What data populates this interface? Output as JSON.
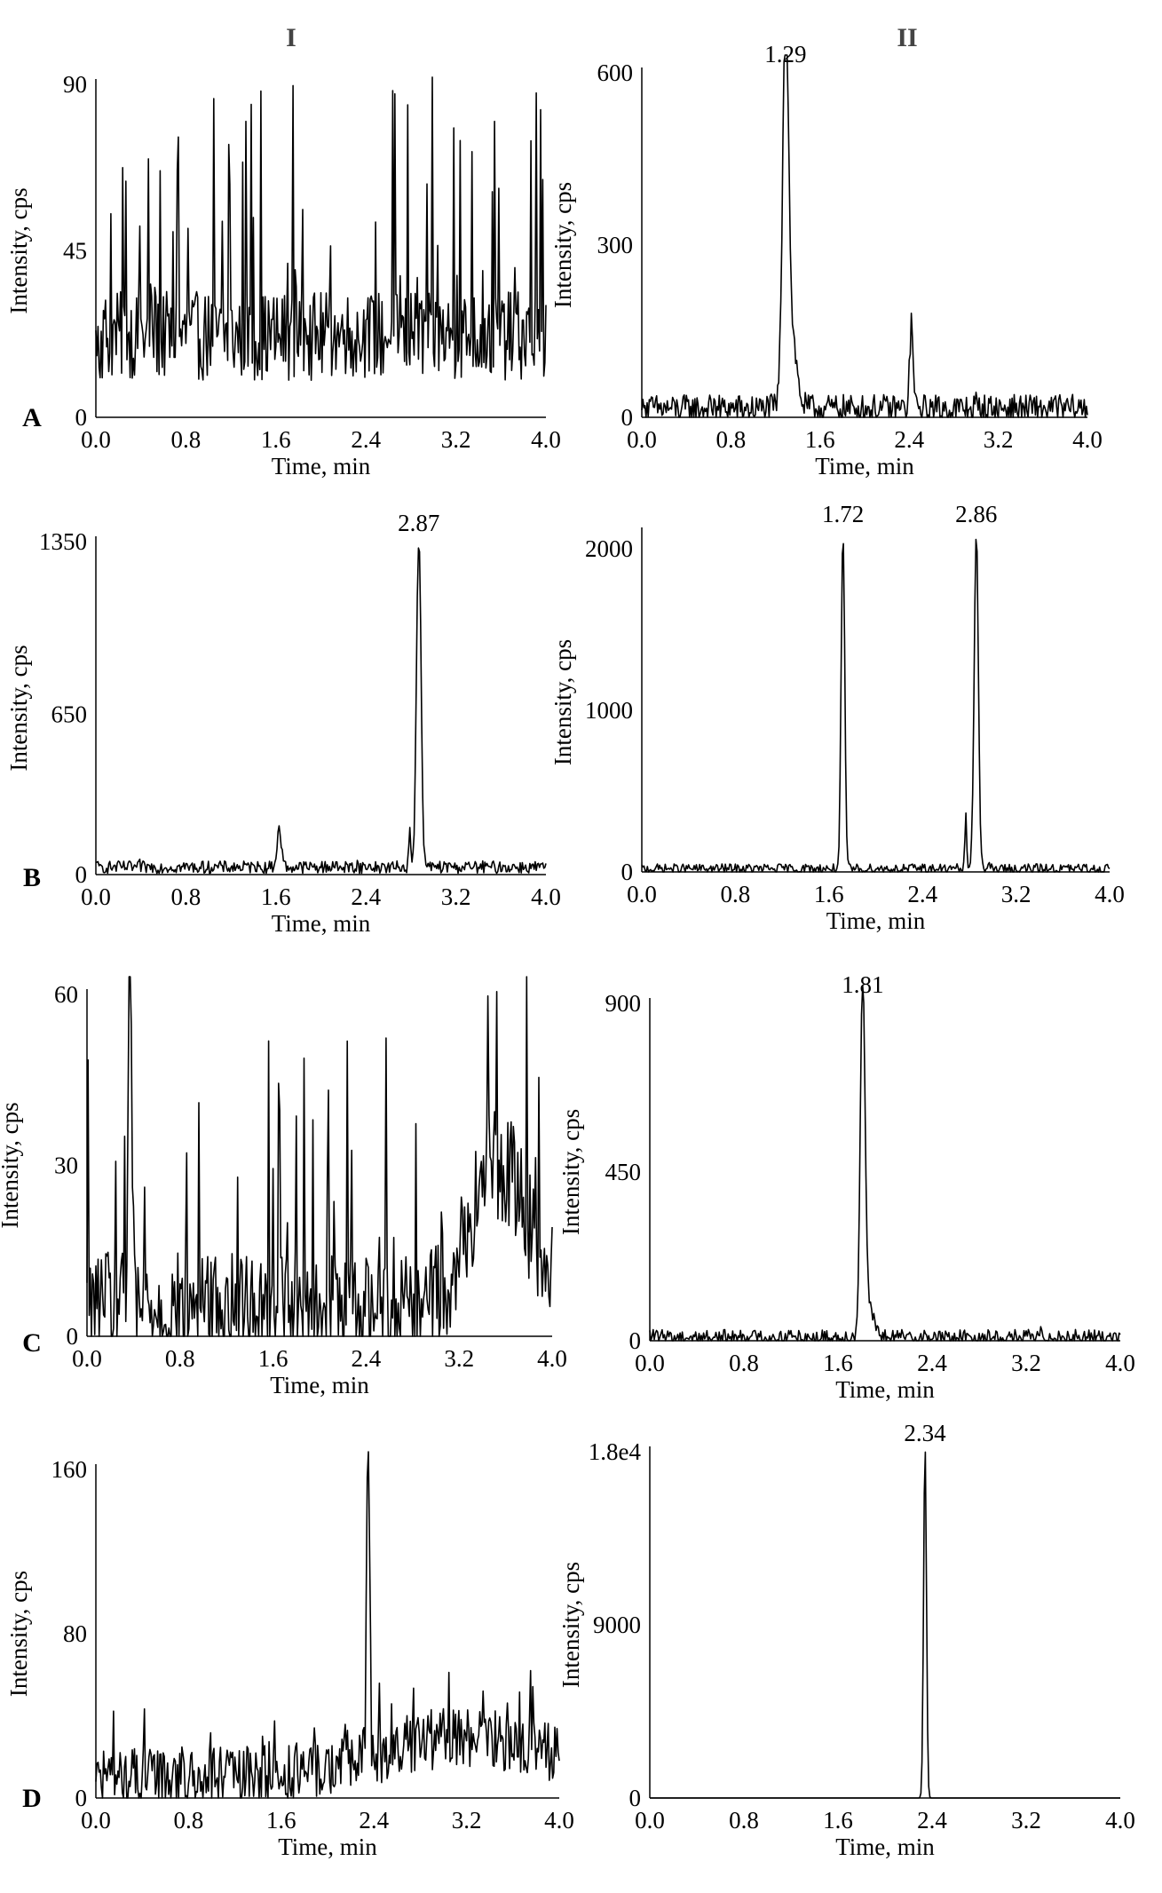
{
  "figure": {
    "column_headers": [
      "I",
      "II"
    ],
    "row_labels": [
      "A",
      "B",
      "C",
      "D"
    ]
  },
  "chart_data": [
    {
      "type": "line",
      "panel": "A",
      "column": "I",
      "xlabel": "Time, min",
      "ylabel": "Intensity, cps",
      "xlim": [
        0.0,
        4.0
      ],
      "ylim": [
        0,
        90
      ],
      "xticks": [
        "0.0",
        "0.8",
        "1.6",
        "2.4",
        "3.2",
        "4.0"
      ],
      "yticks": [
        {
          "value": 0,
          "label": "0"
        },
        {
          "value": 45,
          "label": "45"
        },
        {
          "value": 90,
          "label": "90"
        }
      ],
      "peak_labels": [],
      "baseline": 22,
      "noise": 12,
      "spikes": 60,
      "spike_max": 92,
      "peaks": []
    },
    {
      "type": "line",
      "panel": "A",
      "column": "II",
      "xlabel": "Time, min",
      "ylabel": "Intensity, cps",
      "xlim": [
        0.0,
        4.0
      ],
      "ylim": [
        0,
        600
      ],
      "xticks": [
        "0.0",
        "0.8",
        "1.6",
        "2.4",
        "3.2",
        "4.0"
      ],
      "yticks": [
        {
          "value": 0,
          "label": "0"
        },
        {
          "value": 300,
          "label": "300"
        },
        {
          "value": 600,
          "label": "600"
        }
      ],
      "peak_labels": [
        {
          "x": 1.29,
          "label": "1.29"
        }
      ],
      "baseline": 15,
      "noise": 25,
      "spikes": 4,
      "spike_max": 50,
      "peaks": [
        {
          "x": 1.29,
          "y": 630,
          "w": 0.025
        },
        {
          "x": 1.33,
          "y": 150,
          "w": 0.05
        },
        {
          "x": 2.42,
          "y": 150,
          "w": 0.015
        }
      ]
    },
    {
      "type": "line",
      "panel": "B",
      "column": "I",
      "xlabel": "Time, min",
      "ylabel": "Intensity, cps",
      "xlim": [
        0.0,
        4.0
      ],
      "ylim": [
        0,
        1350
      ],
      "xticks": [
        "0.0",
        "0.8",
        "1.6",
        "2.4",
        "3.2",
        "4.0"
      ],
      "yticks": [
        {
          "value": 0,
          "label": "0"
        },
        {
          "value": 650,
          "label": "650"
        },
        {
          "value": 1350,
          "label": "1350"
        }
      ],
      "peak_labels": [
        {
          "x": 2.87,
          "label": "2.87"
        }
      ],
      "baseline": 30,
      "noise": 25,
      "spikes": 6,
      "spike_max": 80,
      "peaks": [
        {
          "x": 2.87,
          "y": 1330,
          "w": 0.02
        },
        {
          "x": 1.63,
          "y": 150,
          "w": 0.02
        },
        {
          "x": 2.79,
          "y": 140,
          "w": 0.01
        }
      ]
    },
    {
      "type": "line",
      "panel": "B",
      "column": "II",
      "xlabel": "Time, min",
      "ylabel": "Intensity, cps",
      "xlim": [
        0.0,
        4.0
      ],
      "ylim": [
        0,
        2100
      ],
      "xticks": [
        "0.0",
        "0.8",
        "1.6",
        "2.4",
        "3.2",
        "4.0"
      ],
      "yticks": [
        {
          "value": 0,
          "label": "0"
        },
        {
          "value": 1000,
          "label": "1000"
        },
        {
          "value": 2000,
          "label": "2000"
        }
      ],
      "peak_labels": [
        {
          "x": 1.72,
          "label": "1.72"
        },
        {
          "x": 2.86,
          "label": "2.86"
        }
      ],
      "baseline": 20,
      "noise": 30,
      "spikes": 5,
      "spike_max": 60,
      "peaks": [
        {
          "x": 1.72,
          "y": 2080,
          "w": 0.015
        },
        {
          "x": 2.86,
          "y": 2080,
          "w": 0.018
        },
        {
          "x": 2.77,
          "y": 320,
          "w": 0.008
        }
      ]
    },
    {
      "type": "line",
      "panel": "C",
      "column": "I",
      "xlabel": "Time, min",
      "ylabel": "Intensity, cps",
      "xlim": [
        0.0,
        4.0
      ],
      "ylim": [
        0,
        60
      ],
      "xticks": [
        "0.0",
        "0.8",
        "1.6",
        "2.4",
        "3.2",
        "4.0"
      ],
      "yticks": [
        {
          "value": 0,
          "label": "0"
        },
        {
          "value": 30,
          "label": "30"
        },
        {
          "value": 60,
          "label": "60"
        }
      ],
      "peak_labels": [],
      "baseline": 5,
      "noise": 10,
      "spikes": 45,
      "spike_max": 55,
      "peaks": [
        {
          "x": 0.37,
          "y": 62,
          "w": 0.015
        },
        {
          "x": 3.55,
          "y": 25,
          "w": 0.25
        }
      ]
    },
    {
      "type": "line",
      "panel": "C",
      "column": "II",
      "xlabel": "Time, min",
      "ylabel": "Intensity, cps",
      "xlim": [
        0.0,
        4.0
      ],
      "ylim": [
        0,
        900
      ],
      "xticks": [
        "0.0",
        "0.8",
        "1.6",
        "2.4",
        "3.2",
        "4.0"
      ],
      "yticks": [
        {
          "value": 0,
          "label": "0"
        },
        {
          "value": 450,
          "label": "450"
        },
        {
          "value": 900,
          "label": "900"
        }
      ],
      "peak_labels": [
        {
          "x": 1.81,
          "label": "1.81"
        }
      ],
      "baseline": 10,
      "noise": 20,
      "spikes": 5,
      "spike_max": 40,
      "peaks": [
        {
          "x": 1.81,
          "y": 950,
          "w": 0.02
        },
        {
          "x": 1.86,
          "y": 80,
          "w": 0.04
        }
      ]
    },
    {
      "type": "line",
      "panel": "D",
      "column": "I",
      "xlabel": "Time, min",
      "ylabel": "Intensity, cps",
      "xlim": [
        0.0,
        4.0
      ],
      "ylim": [
        0,
        160
      ],
      "xticks": [
        "0.0",
        "0.8",
        "1.6",
        "2.4",
        "3.2",
        "4.0"
      ],
      "yticks": [
        {
          "value": 0,
          "label": "0"
        },
        {
          "value": 80,
          "label": "80"
        },
        {
          "value": 160,
          "label": "160"
        }
      ],
      "peak_labels": [],
      "baseline": 10,
      "noise": 15,
      "spikes": 30,
      "spike_max": 50,
      "peaks": [
        {
          "x": 2.35,
          "y": 170,
          "w": 0.012
        },
        {
          "x": 3.2,
          "y": 20,
          "w": 0.7
        }
      ]
    },
    {
      "type": "line",
      "panel": "D",
      "column": "II",
      "xlabel": "Time, min",
      "ylabel": "Intensity, cps",
      "xlim": [
        0.0,
        4.0
      ],
      "ylim": [
        0,
        18000
      ],
      "xticks": [
        "0.0",
        "0.8",
        "1.6",
        "2.4",
        "3.2",
        "4.0"
      ],
      "yticks": [
        {
          "value": 0,
          "label": "0"
        },
        {
          "value": 9000,
          "label": "9000"
        },
        {
          "value": 18000,
          "label": "1.8e4"
        }
      ],
      "peak_labels": [
        {
          "x": 2.34,
          "label": "2.34"
        }
      ],
      "baseline": 0,
      "noise": 0,
      "spikes": 0,
      "spike_max": 0,
      "peaks": [
        {
          "x": 2.34,
          "y": 18500,
          "w": 0.012
        }
      ]
    }
  ]
}
